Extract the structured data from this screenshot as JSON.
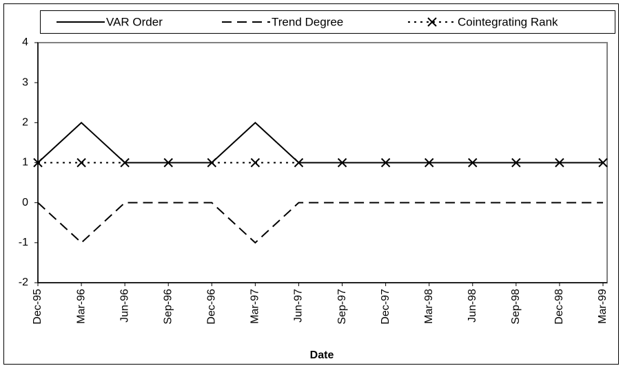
{
  "chart_data": {
    "type": "line",
    "x_label": "Date",
    "categories": [
      "Dec-95",
      "Mar-96",
      "Jun-96",
      "Sep-96",
      "Dec-96",
      "Mar-97",
      "Jun-97",
      "Sep-97",
      "Dec-97",
      "Mar-98",
      "Jun-98",
      "Sep-98",
      "Dec-98",
      "Mar-99"
    ],
    "series": [
      {
        "name": "VAR Order",
        "color": "#000000",
        "style": "solid",
        "marker": "none",
        "values": [
          1,
          2,
          1,
          1,
          1,
          2,
          1,
          1,
          1,
          1,
          1,
          1,
          1,
          1
        ]
      },
      {
        "name": "Trend Degree",
        "color": "#000000",
        "style": "dashed",
        "marker": "none",
        "values": [
          0,
          -1,
          0,
          0,
          0,
          -1,
          0,
          0,
          0,
          0,
          0,
          0,
          0,
          0
        ]
      },
      {
        "name": "Cointegrating Rank",
        "color": "#000000",
        "style": "dotted",
        "marker": "x",
        "values": [
          1,
          1,
          1,
          1,
          1,
          1,
          1,
          1,
          1,
          1,
          1,
          1,
          1,
          1
        ]
      }
    ],
    "ylim": [
      -2,
      4
    ],
    "yticks": [
      -2,
      -1,
      0,
      1,
      2,
      3,
      4
    ],
    "grid": false,
    "legend": "top"
  }
}
